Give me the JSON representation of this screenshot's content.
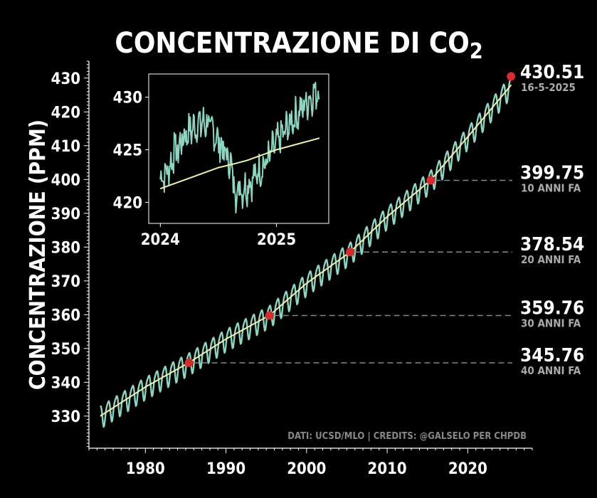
{
  "page": {
    "title_main": "CONCENTRAZIONE DI CO",
    "title_subscript": "2",
    "credits": "DATI: UCSD/MLO | CREDITS: @GALSELO PER CHPDB"
  },
  "colors": {
    "background": "#000000",
    "monthly_line": "#8fd4c0",
    "trend_line": "#f2f0b0",
    "marker": "#d42c2c",
    "dashed": "#888888"
  },
  "chart_data": [
    {
      "type": "line",
      "role": "main",
      "title": "CONCENTRAZIONE DI CO2",
      "xlabel": "",
      "ylabel": "CONCENTRAZIONE (PPM)",
      "xlim": [
        1973.0,
        2028.0
      ],
      "ylim": [
        320.5,
        435.0
      ],
      "x_ticks": [
        1980,
        1990,
        2000,
        2010,
        2020
      ],
      "y_ticks": [
        330,
        340,
        350,
        360,
        370,
        380,
        390,
        400,
        410,
        420,
        430
      ],
      "series": [
        {
          "kind": "monthly",
          "x_start": 1974.4,
          "x_end": 2025.4,
          "seasonal_amplitude": 3.2,
          "trend_points": [
            [
              1974.4,
              330.0
            ],
            [
              1980,
              338.6
            ],
            [
              1985.4,
              345.8
            ],
            [
              1990,
              352.8
            ],
            [
              1995.4,
              359.8
            ],
            [
              2000,
              369.3
            ],
            [
              2005.4,
              378.5
            ],
            [
              2010,
              389.0
            ],
            [
              2015.4,
              399.8
            ],
            [
              2020,
              412.6
            ],
            [
              2025.4,
              428.0
            ]
          ]
        },
        {
          "kind": "trend",
          "points": [
            [
              1974.4,
              330.0
            ],
            [
              1980,
              338.6
            ],
            [
              1985.4,
              345.8
            ],
            [
              1990,
              352.8
            ],
            [
              1995.4,
              359.8
            ],
            [
              2000,
              369.3
            ],
            [
              2005.4,
              378.5
            ],
            [
              2010,
              389.0
            ],
            [
              2015.4,
              399.8
            ],
            [
              2020,
              412.6
            ],
            [
              2025.4,
              428.0
            ]
          ]
        }
      ],
      "annotations": [
        {
          "x": 1985.4,
          "y": 345.76,
          "value_label": "345.76",
          "sub_label": "40 ANNI FA"
        },
        {
          "x": 1995.4,
          "y": 359.76,
          "value_label": "359.76",
          "sub_label": "30 ANNI FA"
        },
        {
          "x": 2005.4,
          "y": 378.54,
          "value_label": "378.54",
          "sub_label": "20 ANNI FA"
        },
        {
          "x": 2015.4,
          "y": 399.75,
          "value_label": "399.75",
          "sub_label": "10 ANNI FA"
        },
        {
          "x": 2025.37,
          "y": 430.51,
          "value_label": "430.51",
          "sub_label": "16-5-2025"
        }
      ]
    },
    {
      "type": "line",
      "role": "inset",
      "xlim": [
        2023.9,
        2025.45
      ],
      "ylim": [
        418.0,
        432.2
      ],
      "x_ticks": [
        2024,
        2025
      ],
      "y_ticks": [
        420,
        425,
        430
      ],
      "series": [
        {
          "kind": "daily",
          "points": [
            [
              2024.0,
              422.2
            ],
            [
              2024.05,
              422.8
            ],
            [
              2024.1,
              423.8
            ],
            [
              2024.15,
              425.0
            ],
            [
              2024.2,
              426.2
            ],
            [
              2024.25,
              426.8
            ],
            [
              2024.3,
              427.2
            ],
            [
              2024.35,
              427.4
            ],
            [
              2024.4,
              427.6
            ],
            [
              2024.45,
              426.8
            ],
            [
              2024.5,
              425.8
            ],
            [
              2024.55,
              424.8
            ],
            [
              2024.6,
              423.8
            ],
            [
              2024.63,
              422.2
            ],
            [
              2024.65,
              421.0
            ],
            [
              2024.67,
              421.5
            ],
            [
              2024.7,
              421.2
            ],
            [
              2024.75,
              421.6
            ],
            [
              2024.8,
              422.2
            ],
            [
              2024.85,
              423.0
            ],
            [
              2024.9,
              423.6
            ],
            [
              2024.95,
              424.6
            ],
            [
              2025.0,
              425.6
            ],
            [
              2025.05,
              426.4
            ],
            [
              2025.1,
              427.2
            ],
            [
              2025.15,
              428.0
            ],
            [
              2025.2,
              428.6
            ],
            [
              2025.25,
              429.4
            ],
            [
              2025.3,
              430.0
            ],
            [
              2025.35,
              430.6
            ],
            [
              2025.37,
              430.3
            ]
          ],
          "spikes": [
            [
              2024.65,
              419.0
            ],
            [
              2024.12,
              426.6
            ],
            [
              2024.34,
              428.6
            ],
            [
              2025.33,
              431.2
            ]
          ]
        },
        {
          "kind": "trend",
          "points": [
            [
              2024.0,
              421.3
            ],
            [
              2024.25,
              422.3
            ],
            [
              2024.5,
              423.3
            ],
            [
              2024.65,
              423.7
            ],
            [
              2024.75,
              424.0
            ],
            [
              2025.0,
              425.0
            ],
            [
              2025.2,
              425.6
            ],
            [
              2025.37,
              426.1
            ]
          ]
        }
      ]
    }
  ]
}
